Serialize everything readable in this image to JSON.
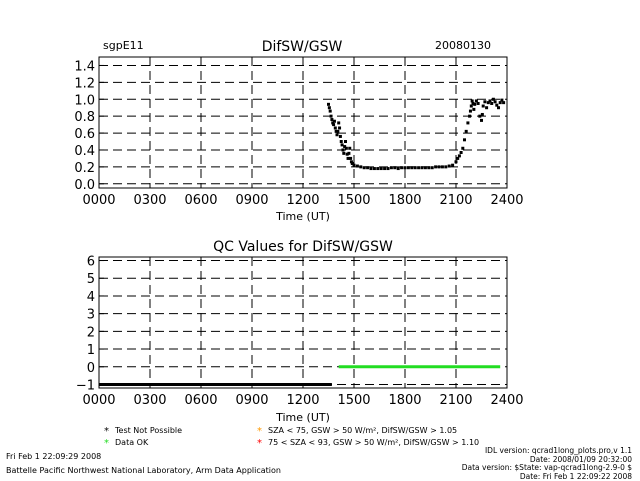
{
  "header": {
    "site": "sgpE11",
    "date": "20080130"
  },
  "chart_data": [
    {
      "type": "scatter",
      "title": "DifSW/GSW",
      "xlabel": "Time (UT)",
      "ylabel": "",
      "x_tick_labels": [
        "0000",
        "0300",
        "0600",
        "0900",
        "1200",
        "1500",
        "1800",
        "2100",
        "2400"
      ],
      "y_tick_labels": [
        "0.0",
        "0.2",
        "0.4",
        "0.6",
        "0.8",
        "1.0",
        "1.2",
        "1.4"
      ],
      "xlim": [
        0,
        24
      ],
      "ylim": [
        -0.05,
        1.5
      ],
      "grid": true,
      "series": [
        {
          "color": "#000000",
          "points": [
            [
              13.5,
              0.94
            ],
            [
              13.55,
              0.9
            ],
            [
              13.6,
              0.86
            ],
            [
              13.65,
              0.8
            ],
            [
              13.7,
              0.76
            ],
            [
              13.75,
              0.72
            ],
            [
              13.8,
              0.7
            ],
            [
              13.85,
              0.74
            ],
            [
              13.9,
              0.66
            ],
            [
              13.95,
              0.62
            ],
            [
              14.0,
              0.58
            ],
            [
              14.05,
              0.62
            ],
            [
              14.1,
              0.72
            ],
            [
              14.15,
              0.66
            ],
            [
              14.2,
              0.56
            ],
            [
              14.25,
              0.5
            ],
            [
              14.3,
              0.46
            ],
            [
              14.35,
              0.4
            ],
            [
              14.4,
              0.36
            ],
            [
              14.45,
              0.44
            ],
            [
              14.5,
              0.5
            ],
            [
              14.55,
              0.42
            ],
            [
              14.6,
              0.35
            ],
            [
              14.65,
              0.3
            ],
            [
              14.7,
              0.36
            ],
            [
              14.75,
              0.42
            ],
            [
              14.8,
              0.3
            ],
            [
              14.85,
              0.26
            ],
            [
              14.9,
              0.24
            ],
            [
              15.0,
              0.22
            ],
            [
              15.2,
              0.21
            ],
            [
              15.4,
              0.2
            ],
            [
              15.6,
              0.19
            ],
            [
              15.8,
              0.19
            ],
            [
              16.0,
              0.18
            ],
            [
              16.2,
              0.18
            ],
            [
              16.4,
              0.18
            ],
            [
              16.6,
              0.18
            ],
            [
              16.8,
              0.18
            ],
            [
              17.0,
              0.18
            ],
            [
              17.2,
              0.19
            ],
            [
              17.4,
              0.19
            ],
            [
              17.6,
              0.18
            ],
            [
              17.8,
              0.19
            ],
            [
              18.0,
              0.19
            ],
            [
              18.2,
              0.19
            ],
            [
              18.4,
              0.19
            ],
            [
              18.6,
              0.19
            ],
            [
              18.8,
              0.19
            ],
            [
              19.0,
              0.19
            ],
            [
              19.2,
              0.19
            ],
            [
              19.4,
              0.19
            ],
            [
              19.6,
              0.19
            ],
            [
              19.8,
              0.2
            ],
            [
              20.0,
              0.2
            ],
            [
              20.2,
              0.2
            ],
            [
              20.4,
              0.2
            ],
            [
              20.6,
              0.21
            ],
            [
              20.8,
              0.22
            ],
            [
              21.0,
              0.26
            ],
            [
              21.1,
              0.3
            ],
            [
              21.2,
              0.33
            ],
            [
              21.3,
              0.37
            ],
            [
              21.4,
              0.42
            ],
            [
              21.5,
              0.52
            ],
            [
              21.6,
              0.62
            ],
            [
              21.7,
              0.72
            ],
            [
              21.8,
              0.8
            ],
            [
              21.85,
              0.86
            ],
            [
              21.9,
              0.92
            ],
            [
              21.95,
              0.98
            ],
            [
              22.0,
              0.95
            ],
            [
              22.05,
              0.88
            ],
            [
              22.1,
              0.94
            ],
            [
              22.2,
              0.98
            ],
            [
              22.3,
              0.95
            ],
            [
              22.4,
              0.8
            ],
            [
              22.5,
              0.75
            ],
            [
              22.55,
              0.82
            ],
            [
              22.6,
              0.92
            ],
            [
              22.7,
              0.97
            ],
            [
              22.8,
              0.9
            ],
            [
              22.9,
              0.96
            ],
            [
              23.0,
              0.98
            ],
            [
              23.1,
              0.95
            ],
            [
              23.2,
              1.0
            ],
            [
              23.3,
              0.97
            ],
            [
              23.4,
              0.93
            ],
            [
              23.5,
              0.9
            ],
            [
              23.6,
              0.96
            ],
            [
              23.7,
              0.99
            ],
            [
              23.8,
              0.96
            ]
          ]
        }
      ]
    },
    {
      "type": "line",
      "title": "QC Values for DifSW/GSW",
      "xlabel": "Time (UT)",
      "ylabel": "",
      "x_tick_labels": [
        "0000",
        "0300",
        "0600",
        "0900",
        "1200",
        "1500",
        "1800",
        "2100",
        "2400"
      ],
      "y_tick_labels": [
        "−1",
        "0",
        "1",
        "2",
        "3",
        "4",
        "5",
        "6"
      ],
      "xlim": [
        0,
        24
      ],
      "ylim": [
        -1.2,
        6.2
      ],
      "grid": true,
      "series": [
        {
          "color": "#000000",
          "segments": [
            [
              [
                0,
                -1
              ],
              [
                13.7,
                -1
              ]
            ]
          ]
        },
        {
          "color": "#22dd22",
          "segments": [
            [
              [
                14.1,
                0
              ],
              [
                23.6,
                0
              ]
            ]
          ]
        }
      ]
    }
  ],
  "legend": {
    "items": [
      {
        "symbol": "*",
        "color": "#000000",
        "text": "Test Not Possible"
      },
      {
        "symbol": "*",
        "color": "#22dd22",
        "text": "Data OK"
      },
      {
        "symbol": "*",
        "color": "#ff9900",
        "text": "SZA < 75, GSW > 50 W/m², DifSW/GSW > 1.05"
      },
      {
        "symbol": "*",
        "color": "#ff0000",
        "text": "75 < SZA < 93, GSW > 50 W/m², DifSW/GSW > 1.10"
      }
    ]
  },
  "footer": {
    "left_date": "Fri Feb  1 22:09:29 2008",
    "left_org": "Battelle Pacific Northwest National Laboratory, Arm Data Application",
    "right_lines": [
      "IDL version: qcrad1long_plots.pro,v 1.1",
      "Date: 2008/01/09 20:32:00",
      "Data version: $State: vap-qcrad1long-2.9-0 $",
      "Date: Fri Feb  1 22:09:22 2008"
    ]
  }
}
